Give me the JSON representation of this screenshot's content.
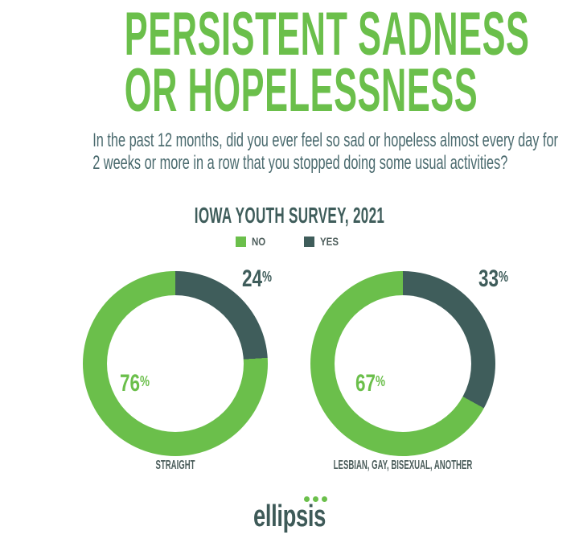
{
  "colors": {
    "green": "#6bbf4b",
    "teal": "#3f5d5b",
    "subtitle_text": "#4a6a6e",
    "label_text": "#4e5e5c",
    "background": "#ffffff"
  },
  "title": {
    "line1": "PERSISTENT SADNESS",
    "line2": "OR HOPELESSNESS"
  },
  "subtitle": {
    "line1": "In the past 12 months, did you ever feel so sad or hopeless almost every day for",
    "line2": "2 weeks or more in a row that you stopped doing some usual activities?"
  },
  "survey_title": "IOWA YOUTH SURVEY, 2021",
  "legend": {
    "items": [
      {
        "label": "NO",
        "color": "#6bbf4b"
      },
      {
        "label": "YES",
        "color": "#3f5d5b"
      }
    ]
  },
  "percent_sign": "%",
  "chart_data": [
    {
      "type": "pie",
      "subtype": "donut",
      "title": "STRAIGHT",
      "start_angle_deg": 0,
      "direction": "clockwise",
      "slices": [
        {
          "label": "NO",
          "value": 76,
          "color": "#6bbf4b"
        },
        {
          "label": "YES",
          "value": 24,
          "color": "#3f5d5b"
        }
      ]
    },
    {
      "type": "pie",
      "subtype": "donut",
      "title": "LESBIAN, GAY, BISEXUAL, ANOTHER",
      "start_angle_deg": 0,
      "direction": "clockwise",
      "slices": [
        {
          "label": "NO",
          "value": 67,
          "color": "#6bbf4b"
        },
        {
          "label": "YES",
          "value": 33,
          "color": "#3f5d5b"
        }
      ]
    }
  ],
  "logo": {
    "text": "ellipsis",
    "dot_count": 3,
    "dot_color": "#6bbf4b"
  }
}
